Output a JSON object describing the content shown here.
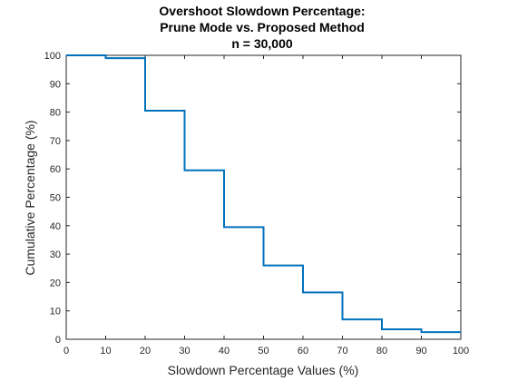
{
  "chart_data": {
    "type": "line",
    "step": "post",
    "title_lines": [
      "Overshoot Slowdown Percentage:",
      "Prune Mode vs. Proposed Method",
      "n = 30,000"
    ],
    "xlabel": "Slowdown Percentage Values (%)",
    "ylabel": "Cumulative Percentage (%)",
    "xlim": [
      0,
      100
    ],
    "ylim": [
      0,
      100
    ],
    "xticks": [
      0,
      10,
      20,
      30,
      40,
      50,
      60,
      70,
      80,
      90,
      100
    ],
    "yticks": [
      0,
      10,
      20,
      30,
      40,
      50,
      60,
      70,
      80,
      90,
      100
    ],
    "grid": false,
    "box": true,
    "series": [
      {
        "color": "#0072BD",
        "x": [
          0,
          10,
          20,
          30,
          40,
          50,
          60,
          70,
          80,
          90,
          100
        ],
        "y": [
          100,
          99,
          80.5,
          59.5,
          39.5,
          26,
          16.5,
          7,
          3.5,
          2.5,
          2.5
        ]
      }
    ]
  }
}
